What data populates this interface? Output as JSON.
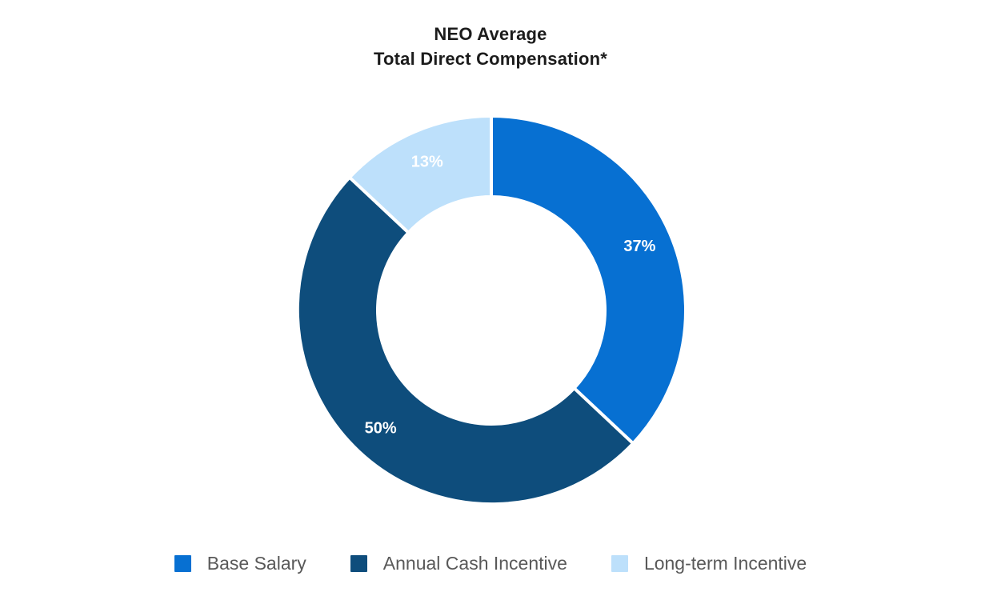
{
  "title": {
    "line1": "NEO Average",
    "line2": "Total Direct Compensation*"
  },
  "colors": {
    "background": "#ffffff",
    "title_text": "#1c1c1c",
    "legend_text": "#595959",
    "segment_label_text": "#ffffff",
    "segment_gap": "#ffffff"
  },
  "chart_data": {
    "type": "pie",
    "subtype": "donut",
    "title": "NEO Average Total Direct Compensation*",
    "direction": "clockwise",
    "start_angle_deg": 0,
    "inner_radius_ratio": 0.585,
    "legend_position": "bottom",
    "grid": false,
    "segments": [
      {
        "id": "base-salary",
        "label": "Base Salary",
        "value": 37,
        "pct_label": "37%",
        "color": "#0770D2"
      },
      {
        "id": "annual-cash-incentive",
        "label": "Annual Cash Incentive",
        "value": 50,
        "pct_label": "50%",
        "color": "#0E4D7C"
      },
      {
        "id": "long-term-incentive",
        "label": "Long-term Incentive",
        "value": 13,
        "pct_label": "13%",
        "color": "#BDE0FB"
      }
    ]
  }
}
